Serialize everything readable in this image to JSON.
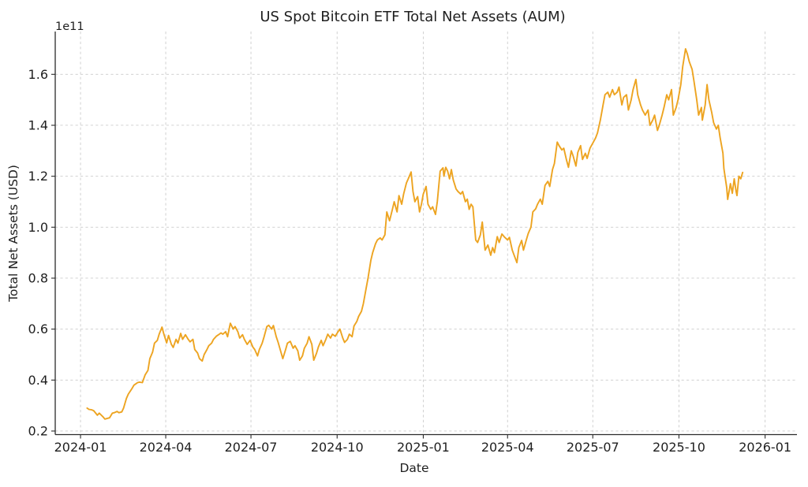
{
  "figure": {
    "background": "#ffffff"
  },
  "chart_data": {
    "type": "line",
    "title": "US Spot Bitcoin ETF Total Net Assets (AUM)",
    "xlabel": "Date",
    "ylabel": "Total Net Assets (USD)",
    "y_offset_text": "1e11",
    "y_unit_multiplier": 100000000000,
    "line_color": "#EDA421",
    "grid": true,
    "grid_style": "dashed",
    "grid_color": "#cccccc",
    "axis_color": "#2b2b2b",
    "text_color": "#1f1f1f",
    "legend": "none",
    "x_epoch": "2024-01-01",
    "x_tick_labels": [
      "2024-01",
      "2024-04",
      "2024-07",
      "2024-10",
      "2025-01",
      "2025-04",
      "2025-07",
      "2025-10",
      "2026-01"
    ],
    "x_tick_days": [
      0,
      91,
      182,
      274,
      366,
      456,
      547,
      639,
      731
    ],
    "xlim_days": [
      -27,
      765
    ],
    "y_ticks": [
      0.2,
      0.4,
      0.6,
      0.8,
      1.0,
      1.2,
      1.4,
      1.6
    ],
    "ylim": [
      0.186,
      1.768
    ],
    "series": [
      {
        "name": "Total Net Assets",
        "points": [
          [
            7,
            0.29
          ],
          [
            9,
            0.285
          ],
          [
            12,
            0.283
          ],
          [
            14,
            0.28
          ],
          [
            18,
            0.262
          ],
          [
            20,
            0.27
          ],
          [
            24,
            0.256
          ],
          [
            26,
            0.247
          ],
          [
            29,
            0.25
          ],
          [
            31,
            0.252
          ],
          [
            34,
            0.27
          ],
          [
            36,
            0.272
          ],
          [
            39,
            0.277
          ],
          [
            41,
            0.272
          ],
          [
            44,
            0.275
          ],
          [
            46,
            0.29
          ],
          [
            49,
            0.328
          ],
          [
            51,
            0.345
          ],
          [
            55,
            0.367
          ],
          [
            57,
            0.38
          ],
          [
            61,
            0.39
          ],
          [
            63,
            0.392
          ],
          [
            66,
            0.39
          ],
          [
            69,
            0.42
          ],
          [
            72,
            0.438
          ],
          [
            74,
            0.484
          ],
          [
            77,
            0.51
          ],
          [
            79,
            0.545
          ],
          [
            82,
            0.556
          ],
          [
            84,
            0.58
          ],
          [
            87,
            0.608
          ],
          [
            89,
            0.58
          ],
          [
            92,
            0.546
          ],
          [
            94,
            0.575
          ],
          [
            97,
            0.54
          ],
          [
            99,
            0.528
          ],
          [
            102,
            0.56
          ],
          [
            104,
            0.545
          ],
          [
            107,
            0.583
          ],
          [
            109,
            0.56
          ],
          [
            112,
            0.578
          ],
          [
            115,
            0.56
          ],
          [
            117,
            0.55
          ],
          [
            120,
            0.56
          ],
          [
            122,
            0.52
          ],
          [
            125,
            0.506
          ],
          [
            127,
            0.484
          ],
          [
            130,
            0.475
          ],
          [
            132,
            0.5
          ],
          [
            135,
            0.52
          ],
          [
            137,
            0.535
          ],
          [
            140,
            0.545
          ],
          [
            142,
            0.56
          ],
          [
            145,
            0.572
          ],
          [
            147,
            0.577
          ],
          [
            150,
            0.585
          ],
          [
            152,
            0.58
          ],
          [
            155,
            0.59
          ],
          [
            157,
            0.57
          ],
          [
            160,
            0.623
          ],
          [
            163,
            0.6
          ],
          [
            165,
            0.61
          ],
          [
            168,
            0.59
          ],
          [
            170,
            0.565
          ],
          [
            173,
            0.578
          ],
          [
            175,
            0.56
          ],
          [
            178,
            0.54
          ],
          [
            181,
            0.556
          ],
          [
            184,
            0.53
          ],
          [
            186,
            0.52
          ],
          [
            189,
            0.495
          ],
          [
            191,
            0.52
          ],
          [
            194,
            0.545
          ],
          [
            196,
            0.57
          ],
          [
            199,
            0.61
          ],
          [
            201,
            0.615
          ],
          [
            204,
            0.6
          ],
          [
            206,
            0.614
          ],
          [
            209,
            0.57
          ],
          [
            211,
            0.548
          ],
          [
            214,
            0.51
          ],
          [
            216,
            0.484
          ],
          [
            219,
            0.52
          ],
          [
            221,
            0.545
          ],
          [
            224,
            0.552
          ],
          [
            227,
            0.525
          ],
          [
            229,
            0.535
          ],
          [
            232,
            0.515
          ],
          [
            234,
            0.478
          ],
          [
            237,
            0.495
          ],
          [
            239,
            0.525
          ],
          [
            242,
            0.545
          ],
          [
            244,
            0.57
          ],
          [
            247,
            0.54
          ],
          [
            249,
            0.478
          ],
          [
            252,
            0.505
          ],
          [
            254,
            0.53
          ],
          [
            257,
            0.556
          ],
          [
            259,
            0.535
          ],
          [
            262,
            0.56
          ],
          [
            264,
            0.58
          ],
          [
            267,
            0.565
          ],
          [
            269,
            0.58
          ],
          [
            272,
            0.572
          ],
          [
            275,
            0.59
          ],
          [
            277,
            0.6
          ],
          [
            280,
            0.565
          ],
          [
            282,
            0.548
          ],
          [
            285,
            0.56
          ],
          [
            287,
            0.58
          ],
          [
            290,
            0.57
          ],
          [
            292,
            0.612
          ],
          [
            295,
            0.63
          ],
          [
            297,
            0.65
          ],
          [
            300,
            0.67
          ],
          [
            302,
            0.7
          ],
          [
            305,
            0.76
          ],
          [
            307,
            0.8
          ],
          [
            310,
            0.87
          ],
          [
            312,
            0.9
          ],
          [
            315,
            0.935
          ],
          [
            317,
            0.95
          ],
          [
            320,
            0.958
          ],
          [
            322,
            0.95
          ],
          [
            325,
            0.97
          ],
          [
            327,
            1.06
          ],
          [
            330,
            1.025
          ],
          [
            333,
            1.07
          ],
          [
            335,
            1.1
          ],
          [
            338,
            1.06
          ],
          [
            340,
            1.124
          ],
          [
            343,
            1.09
          ],
          [
            345,
            1.13
          ],
          [
            348,
            1.174
          ],
          [
            350,
            1.19
          ],
          [
            353,
            1.217
          ],
          [
            355,
            1.14
          ],
          [
            357,
            1.1
          ],
          [
            360,
            1.12
          ],
          [
            362,
            1.06
          ],
          [
            364,
            1.09
          ],
          [
            366,
            1.13
          ],
          [
            369,
            1.16
          ],
          [
            371,
            1.09
          ],
          [
            374,
            1.07
          ],
          [
            376,
            1.08
          ],
          [
            379,
            1.05
          ],
          [
            381,
            1.1
          ],
          [
            384,
            1.22
          ],
          [
            387,
            1.233
          ],
          [
            388,
            1.2
          ],
          [
            390,
            1.235
          ],
          [
            392,
            1.22
          ],
          [
            394,
            1.19
          ],
          [
            396,
            1.226
          ],
          [
            398,
            1.186
          ],
          [
            401,
            1.15
          ],
          [
            403,
            1.14
          ],
          [
            406,
            1.13
          ],
          [
            408,
            1.14
          ],
          [
            411,
            1.1
          ],
          [
            413,
            1.11
          ],
          [
            415,
            1.07
          ],
          [
            417,
            1.09
          ],
          [
            419,
            1.08
          ],
          [
            422,
            0.95
          ],
          [
            424,
            0.94
          ],
          [
            427,
            0.97
          ],
          [
            429,
            1.02
          ],
          [
            432,
            0.91
          ],
          [
            435,
            0.93
          ],
          [
            438,
            0.89
          ],
          [
            440,
            0.92
          ],
          [
            442,
            0.9
          ],
          [
            445,
            0.963
          ],
          [
            447,
            0.94
          ],
          [
            450,
            0.973
          ],
          [
            453,
            0.96
          ],
          [
            456,
            0.95
          ],
          [
            458,
            0.96
          ],
          [
            461,
            0.91
          ],
          [
            463,
            0.89
          ],
          [
            466,
            0.861
          ],
          [
            468,
            0.92
          ],
          [
            471,
            0.948
          ],
          [
            473,
            0.91
          ],
          [
            476,
            0.95
          ],
          [
            478,
            0.975
          ],
          [
            481,
            1.0
          ],
          [
            483,
            1.06
          ],
          [
            486,
            1.072
          ],
          [
            488,
            1.09
          ],
          [
            491,
            1.11
          ],
          [
            493,
            1.09
          ],
          [
            496,
            1.164
          ],
          [
            499,
            1.18
          ],
          [
            501,
            1.16
          ],
          [
            504,
            1.226
          ],
          [
            506,
            1.25
          ],
          [
            509,
            1.334
          ],
          [
            511,
            1.32
          ],
          [
            514,
            1.303
          ],
          [
            516,
            1.31
          ],
          [
            519,
            1.263
          ],
          [
            521,
            1.235
          ],
          [
            524,
            1.3
          ],
          [
            526,
            1.28
          ],
          [
            529,
            1.24
          ],
          [
            531,
            1.294
          ],
          [
            534,
            1.32
          ],
          [
            536,
            1.266
          ],
          [
            539,
            1.29
          ],
          [
            541,
            1.27
          ],
          [
            544,
            1.31
          ],
          [
            547,
            1.33
          ],
          [
            550,
            1.35
          ],
          [
            552,
            1.37
          ],
          [
            555,
            1.42
          ],
          [
            558,
            1.48
          ],
          [
            560,
            1.52
          ],
          [
            563,
            1.53
          ],
          [
            565,
            1.51
          ],
          [
            568,
            1.54
          ],
          [
            570,
            1.52
          ],
          [
            573,
            1.53
          ],
          [
            575,
            1.55
          ],
          [
            578,
            1.48
          ],
          [
            580,
            1.51
          ],
          [
            583,
            1.52
          ],
          [
            585,
            1.46
          ],
          [
            588,
            1.5
          ],
          [
            590,
            1.54
          ],
          [
            593,
            1.58
          ],
          [
            595,
            1.52
          ],
          [
            598,
            1.48
          ],
          [
            600,
            1.46
          ],
          [
            603,
            1.44
          ],
          [
            606,
            1.46
          ],
          [
            608,
            1.4
          ],
          [
            611,
            1.42
          ],
          [
            613,
            1.44
          ],
          [
            616,
            1.38
          ],
          [
            618,
            1.4
          ],
          [
            621,
            1.44
          ],
          [
            623,
            1.47
          ],
          [
            626,
            1.52
          ],
          [
            628,
            1.5
          ],
          [
            631,
            1.54
          ],
          [
            633,
            1.44
          ],
          [
            636,
            1.47
          ],
          [
            638,
            1.5
          ],
          [
            641,
            1.56
          ],
          [
            643,
            1.63
          ],
          [
            646,
            1.7
          ],
          [
            648,
            1.68
          ],
          [
            650,
            1.65
          ],
          [
            653,
            1.62
          ],
          [
            655,
            1.575
          ],
          [
            658,
            1.5
          ],
          [
            660,
            1.44
          ],
          [
            663,
            1.47
          ],
          [
            664,
            1.42
          ],
          [
            667,
            1.48
          ],
          [
            669,
            1.56
          ],
          [
            671,
            1.5
          ],
          [
            674,
            1.45
          ],
          [
            676,
            1.41
          ],
          [
            679,
            1.385
          ],
          [
            681,
            1.4
          ],
          [
            683,
            1.35
          ],
          [
            686,
            1.29
          ],
          [
            687,
            1.23
          ],
          [
            690,
            1.155
          ],
          [
            691,
            1.109
          ],
          [
            694,
            1.171
          ],
          [
            696,
            1.133
          ],
          [
            698,
            1.19
          ],
          [
            700,
            1.14
          ],
          [
            701,
            1.124
          ],
          [
            703,
            1.2
          ],
          [
            705,
            1.19
          ],
          [
            707,
            1.215
          ]
        ]
      }
    ]
  }
}
